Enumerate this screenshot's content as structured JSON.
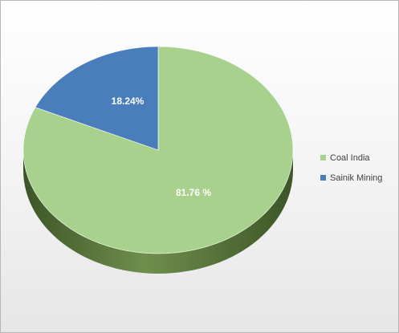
{
  "chart_data": {
    "type": "pie",
    "style": "3d",
    "categories": [
      "Coal India",
      "Sainik Mining"
    ],
    "values": [
      81.76,
      18.24
    ],
    "data_labels": [
      "81.76 %",
      "18.24%"
    ],
    "colors": [
      "#a9d18e",
      "#4a7ebb"
    ],
    "side_colors": [
      "#5a7a3c",
      "#2f4f78"
    ],
    "legend_position": "right",
    "title": ""
  }
}
